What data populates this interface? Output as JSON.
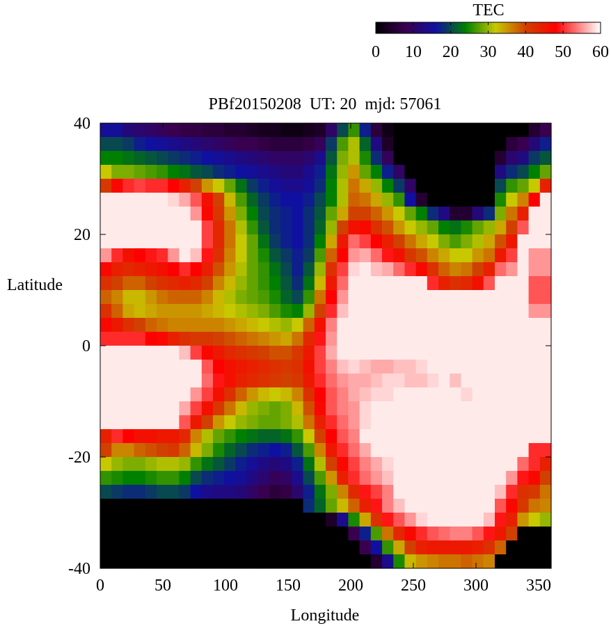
{
  "chart_data": {
    "type": "heatmap",
    "title": "PBf20150208  UT: 20  mjd: 57061",
    "xlabel": "Longitude",
    "ylabel": "Latitude",
    "xlim": [
      0,
      360
    ],
    "ylim": [
      -40,
      40
    ],
    "x_ticks": [
      "0",
      "50",
      "100",
      "150",
      "200",
      "250",
      "300",
      "350"
    ],
    "y_ticks": [
      "-40",
      "-20",
      "0",
      "20",
      "40"
    ],
    "grid": false,
    "colorbar": {
      "label": "TEC",
      "range": [
        0,
        60
      ],
      "ticks": [
        "0",
        "10",
        "20",
        "30",
        "40",
        "50",
        "60"
      ],
      "placement": "top-right",
      "colormap": [
        {
          "value": 0,
          "color": "#000000"
        },
        {
          "value": 8,
          "color": "#3a0050"
        },
        {
          "value": 16,
          "color": "#1010a0"
        },
        {
          "value": 24,
          "color": "#008000"
        },
        {
          "value": 32,
          "color": "#c8c800"
        },
        {
          "value": 40,
          "color": "#d04000"
        },
        {
          "value": 48,
          "color": "#ff0000"
        },
        {
          "value": 60,
          "color": "#ffffff"
        }
      ]
    },
    "grid_resolution": {
      "lon_step": 9,
      "lat_step": 2.5
    },
    "lon_centers": [
      4.5,
      13.5,
      22.5,
      31.5,
      40.5,
      49.5,
      58.5,
      67.5,
      76.5,
      85.5,
      94.5,
      103.5,
      112.5,
      121.5,
      130.5,
      139.5,
      148.5,
      157.5,
      166.5,
      175.5,
      184.5,
      193.5,
      202.5,
      211.5,
      220.5,
      229.5,
      238.5,
      247.5,
      256.5,
      265.5,
      274.5,
      283.5,
      292.5,
      301.5,
      310.5,
      319.5,
      328.5,
      337.5,
      346.5,
      355.5
    ],
    "lat_centers": [
      38.75,
      36.25,
      33.75,
      31.25,
      28.75,
      26.25,
      23.75,
      21.25,
      18.75,
      16.25,
      13.75,
      11.25,
      8.75,
      6.25,
      3.75,
      1.25,
      -1.25,
      -3.75,
      -6.25,
      -8.75,
      -11.25,
      -13.75,
      -16.25,
      -18.75,
      -21.25,
      -23.75,
      -26.25,
      -28.75,
      -31.25,
      -33.75,
      -36.25,
      -38.75
    ],
    "values": [
      [
        15,
        15,
        12,
        11,
        10,
        9,
        8,
        7,
        7,
        6,
        6,
        5,
        5,
        4,
        3,
        3,
        2,
        2,
        3,
        4,
        10,
        20,
        26,
        17,
        6,
        2,
        0,
        0,
        0,
        0,
        0,
        0,
        0,
        0,
        0,
        0,
        0,
        0,
        5,
        8
      ],
      [
        20,
        20,
        19,
        17,
        16,
        15,
        14,
        13,
        12,
        11,
        10,
        9,
        8,
        8,
        7,
        6,
        6,
        6,
        7,
        9,
        19,
        27,
        31,
        22,
        13,
        4,
        0,
        0,
        0,
        0,
        0,
        0,
        0,
        0,
        0,
        0,
        6,
        8,
        12,
        17
      ],
      [
        24,
        24,
        23,
        22,
        21,
        20,
        19,
        18,
        17,
        16,
        15,
        14,
        13,
        12,
        11,
        10,
        10,
        10,
        11,
        14,
        21,
        29,
        31,
        25,
        18,
        9,
        0,
        0,
        0,
        0,
        0,
        0,
        0,
        0,
        0,
        5,
        11,
        13,
        19,
        21
      ],
      [
        32,
        29,
        29,
        28,
        27,
        26,
        24,
        23,
        21,
        20,
        18,
        17,
        16,
        15,
        14,
        13,
        12,
        12,
        14,
        17,
        23,
        30,
        35,
        28,
        24,
        17,
        10,
        0,
        0,
        0,
        0,
        0,
        0,
        0,
        0,
        13,
        18,
        20,
        24,
        28
      ],
      [
        41,
        47,
        50,
        51,
        50,
        50,
        48,
        44,
        40,
        35,
        32,
        28,
        23,
        19,
        17,
        15,
        14,
        14,
        15,
        18,
        24,
        31,
        37,
        34,
        30,
        24,
        19,
        10,
        0,
        0,
        0,
        0,
        0,
        0,
        0,
        20,
        26,
        28,
        32,
        44
      ],
      [
        59,
        59,
        59,
        59,
        59,
        59,
        58,
        56,
        52,
        46,
        40,
        33,
        27,
        22,
        19,
        17,
        16,
        16,
        17,
        20,
        24,
        31,
        38,
        37,
        34,
        30,
        26,
        16,
        5,
        0,
        0,
        0,
        0,
        0,
        0,
        25,
        32,
        36,
        48,
        59
      ],
      [
        59,
        59,
        59,
        59,
        59,
        59,
        59,
        59,
        55,
        47,
        41,
        35,
        29,
        24,
        20,
        18,
        17,
        16,
        18,
        21,
        28,
        34,
        40,
        40,
        38,
        35,
        32,
        28,
        24,
        18,
        13,
        5,
        5,
        12,
        18,
        29,
        37,
        44,
        59,
        59
      ],
      [
        59,
        59,
        59,
        59,
        59,
        59,
        59,
        59,
        59,
        51,
        43,
        37,
        31,
        26,
        21,
        18,
        17,
        16,
        18,
        22,
        30,
        40,
        46,
        47,
        42,
        39,
        35,
        32,
        30,
        28,
        24,
        23,
        25,
        28,
        30,
        34,
        40,
        52,
        59,
        59
      ],
      [
        59,
        59,
        59,
        59,
        59,
        59,
        59,
        59,
        59,
        51,
        43,
        37,
        32,
        28,
        23,
        19,
        17,
        16,
        18,
        24,
        34,
        45,
        53,
        51,
        48,
        44,
        40,
        37,
        34,
        32,
        29,
        27,
        29,
        31,
        34,
        39,
        45,
        59,
        59,
        59
      ],
      [
        55,
        50,
        46,
        48,
        49,
        50,
        55,
        59,
        57,
        49,
        42,
        36,
        32,
        28,
        25,
        21,
        19,
        17,
        19,
        27,
        38,
        48,
        55,
        56,
        53,
        49,
        46,
        41,
        39,
        36,
        34,
        32,
        32,
        35,
        37,
        45,
        51,
        59,
        55,
        55
      ],
      [
        47,
        44,
        43,
        44,
        45,
        46,
        48,
        50,
        48,
        44,
        39,
        35,
        31,
        28,
        26,
        23,
        20,
        17,
        21,
        30,
        42,
        51,
        58,
        59,
        57,
        56,
        53,
        50,
        47,
        42,
        38,
        36,
        37,
        40,
        44,
        53,
        55,
        59,
        55,
        55
      ],
      [
        42,
        40,
        38,
        38,
        40,
        42,
        43,
        44,
        43,
        40,
        36,
        33,
        30,
        28,
        26,
        24,
        21,
        18,
        23,
        33,
        45,
        53,
        59,
        59,
        59,
        59,
        59,
        59,
        59,
        50,
        44,
        42,
        43,
        46,
        52,
        59,
        59,
        59,
        52,
        52
      ],
      [
        38,
        36,
        33,
        33,
        35,
        37,
        38,
        38,
        38,
        36,
        33,
        31,
        29,
        28,
        27,
        25,
        22,
        20,
        26,
        37,
        48,
        55,
        59,
        59,
        59,
        59,
        59,
        59,
        59,
        59,
        59,
        59,
        59,
        59,
        59,
        59,
        59,
        59,
        52,
        52
      ],
      [
        42,
        38,
        34,
        33,
        34,
        35,
        35,
        35,
        35,
        34,
        33,
        32,
        31,
        30,
        29,
        27,
        25,
        24,
        30,
        40,
        50,
        57,
        59,
        59,
        59,
        59,
        59,
        59,
        59,
        59,
        59,
        59,
        59,
        59,
        59,
        59,
        59,
        59,
        55,
        55
      ],
      [
        47,
        45,
        42,
        40,
        38,
        37,
        36,
        36,
        36,
        36,
        36,
        35,
        34,
        33,
        32,
        31,
        30,
        32,
        38,
        46,
        54,
        59,
        59,
        59,
        59,
        59,
        59,
        59,
        59,
        59,
        59,
        59,
        59,
        59,
        59,
        59,
        59,
        59,
        59,
        59
      ],
      [
        50,
        50,
        50,
        50,
        48,
        47,
        44,
        42,
        41,
        41,
        40,
        39,
        38,
        37,
        36,
        35,
        34,
        37,
        43,
        49,
        55,
        59,
        59,
        59,
        59,
        59,
        59,
        59,
        59,
        59,
        59,
        59,
        59,
        59,
        59,
        59,
        59,
        59,
        59,
        59
      ],
      [
        59,
        59,
        59,
        59,
        59,
        59,
        59,
        57,
        51,
        47,
        45,
        43,
        42,
        41,
        40,
        39,
        39,
        41,
        45,
        51,
        56,
        59,
        59,
        59,
        59,
        59,
        59,
        59,
        59,
        59,
        59,
        59,
        59,
        59,
        59,
        59,
        59,
        59,
        59,
        59
      ],
      [
        59,
        59,
        59,
        59,
        59,
        59,
        59,
        59,
        59,
        52,
        48,
        46,
        45,
        44,
        43,
        42,
        41,
        42,
        46,
        51,
        54,
        57,
        58,
        57,
        56,
        56,
        57,
        57,
        58,
        59,
        59,
        59,
        59,
        59,
        59,
        59,
        59,
        59,
        59,
        59
      ],
      [
        59,
        59,
        59,
        59,
        59,
        59,
        59,
        59,
        59,
        53,
        49,
        46,
        44,
        43,
        42,
        41,
        40,
        41,
        45,
        50,
        53,
        55,
        56,
        56,
        57,
        58,
        58,
        57,
        57,
        58,
        59,
        57,
        59,
        59,
        59,
        59,
        59,
        59,
        59,
        59
      ],
      [
        59,
        59,
        59,
        59,
        59,
        59,
        59,
        59,
        55,
        51,
        46,
        42,
        38,
        35,
        33,
        32,
        33,
        36,
        42,
        48,
        52,
        54,
        56,
        57,
        58,
        58,
        59,
        59,
        59,
        59,
        59,
        59,
        58,
        59,
        59,
        59,
        59,
        59,
        59,
        59
      ],
      [
        59,
        59,
        59,
        59,
        59,
        59,
        59,
        56,
        51,
        46,
        41,
        37,
        33,
        30,
        29,
        28,
        29,
        33,
        39,
        47,
        52,
        54,
        55,
        58,
        59,
        59,
        59,
        59,
        59,
        59,
        59,
        59,
        59,
        59,
        59,
        59,
        59,
        59,
        59,
        59
      ],
      [
        59,
        59,
        59,
        59,
        59,
        59,
        59,
        52,
        45,
        40,
        35,
        32,
        30,
        29,
        28,
        28,
        29,
        31,
        37,
        44,
        50,
        53,
        55,
        58,
        59,
        59,
        59,
        59,
        59,
        59,
        59,
        59,
        59,
        59,
        59,
        59,
        59,
        59,
        59,
        59
      ],
      [
        44,
        50,
        48,
        46,
        46,
        45,
        45,
        43,
        36,
        31,
        28,
        26,
        24,
        23,
        22,
        22,
        23,
        26,
        32,
        40,
        48,
        52,
        54,
        59,
        59,
        59,
        59,
        59,
        59,
        59,
        59,
        59,
        59,
        59,
        59,
        59,
        59,
        59,
        59,
        59
      ],
      [
        40,
        36,
        36,
        38,
        39,
        40,
        41,
        38,
        33,
        29,
        25,
        22,
        20,
        18,
        17,
        16,
        17,
        21,
        27,
        36,
        45,
        50,
        53,
        56,
        59,
        59,
        59,
        59,
        59,
        59,
        59,
        59,
        59,
        59,
        59,
        59,
        59,
        59,
        50,
        50
      ],
      [
        32,
        30,
        29,
        29,
        30,
        31,
        31,
        30,
        26,
        23,
        21,
        19,
        17,
        15,
        13,
        12,
        13,
        17,
        23,
        31,
        40,
        47,
        51,
        54,
        56,
        58,
        59,
        59,
        59,
        59,
        59,
        59,
        59,
        59,
        59,
        59,
        59,
        53,
        50,
        44
      ],
      [
        26,
        25,
        24,
        24,
        25,
        26,
        26,
        24,
        20,
        18,
        17,
        16,
        15,
        13,
        11,
        9,
        10,
        14,
        20,
        27,
        35,
        44,
        50,
        53,
        55,
        57,
        59,
        59,
        59,
        59,
        59,
        59,
        59,
        59,
        59,
        59,
        55,
        49,
        47,
        40
      ],
      [
        20,
        19,
        18,
        18,
        19,
        20,
        20,
        19,
        16,
        14,
        13,
        13,
        12,
        10,
        8,
        6,
        7,
        11,
        17,
        23,
        29,
        36,
        43,
        49,
        51,
        54,
        59,
        59,
        59,
        59,
        59,
        59,
        59,
        59,
        59,
        57,
        50,
        42,
        41,
        37
      ],
      [
        0,
        0,
        0,
        0,
        0,
        0,
        0,
        0,
        0,
        0,
        0,
        0,
        0,
        0,
        0,
        0,
        0,
        0,
        18,
        22,
        28,
        33,
        38,
        44,
        49,
        54,
        57,
        59,
        59,
        59,
        59,
        59,
        59,
        59,
        59,
        52,
        47,
        41,
        37,
        36
      ],
      [
        0,
        0,
        0,
        0,
        0,
        0,
        0,
        0,
        0,
        0,
        0,
        0,
        0,
        0,
        0,
        0,
        0,
        0,
        0,
        0,
        4,
        14,
        25,
        34,
        42,
        49,
        52,
        55,
        58,
        59,
        59,
        59,
        59,
        59,
        57,
        49,
        44,
        35,
        32,
        30
      ],
      [
        0,
        0,
        0,
        0,
        0,
        0,
        0,
        0,
        0,
        0,
        0,
        0,
        0,
        0,
        0,
        0,
        0,
        0,
        0,
        0,
        0,
        0,
        8,
        17,
        27,
        37,
        43,
        47,
        50,
        52,
        53,
        54,
        54,
        52,
        49,
        45,
        40,
        0,
        0,
        0
      ],
      [
        0,
        0,
        0,
        0,
        0,
        0,
        0,
        0,
        0,
        0,
        0,
        0,
        0,
        0,
        0,
        0,
        0,
        0,
        0,
        0,
        0,
        0,
        0,
        8,
        16,
        26,
        34,
        40,
        44,
        45,
        45,
        45,
        45,
        44,
        42,
        38,
        0,
        0,
        0,
        0
      ],
      [
        0,
        0,
        0,
        0,
        0,
        0,
        0,
        0,
        0,
        0,
        0,
        0,
        0,
        0,
        0,
        0,
        0,
        0,
        0,
        0,
        0,
        0,
        0,
        0,
        5,
        14,
        25,
        33,
        35,
        36,
        37,
        37,
        38,
        37,
        36,
        0,
        0,
        0,
        0,
        0
      ]
    ]
  }
}
